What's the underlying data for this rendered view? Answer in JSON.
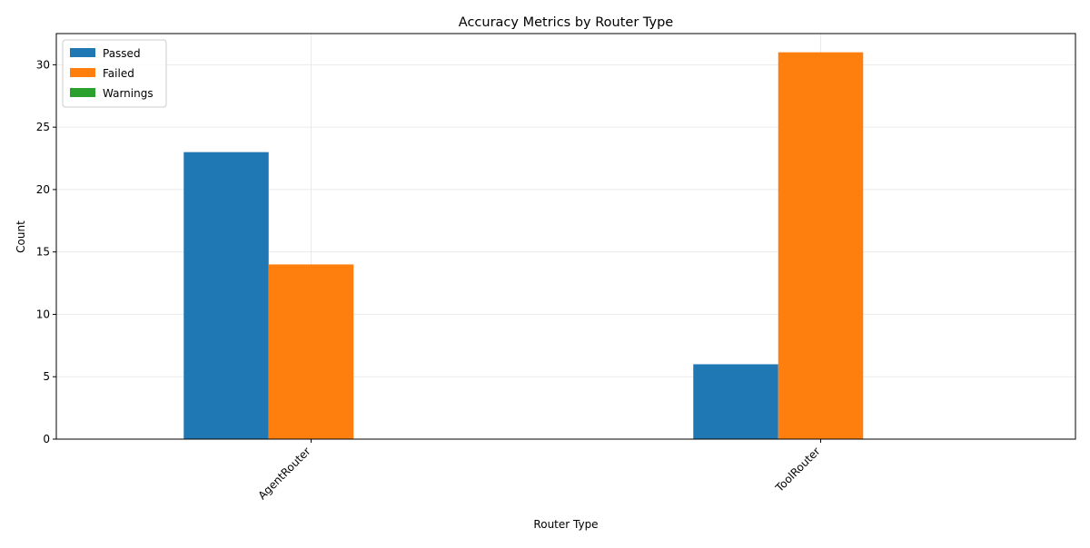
{
  "chart_data": {
    "type": "bar",
    "title": "Accuracy Metrics by Router Type",
    "xlabel": "Router Type",
    "ylabel": "Count",
    "categories": [
      "AgentRouter",
      "ToolRouter"
    ],
    "series": [
      {
        "name": "Passed",
        "values": [
          23,
          6
        ],
        "color": "#1f77b4"
      },
      {
        "name": "Failed",
        "values": [
          14,
          31
        ],
        "color": "#ff7f0e"
      },
      {
        "name": "Warnings",
        "values": [
          0,
          0
        ],
        "color": "#2ca02c"
      }
    ],
    "ylim": [
      0,
      32.5
    ],
    "yticks": [
      0,
      5,
      10,
      15,
      20,
      25,
      30
    ],
    "grid": true,
    "legend_position": "upper-left",
    "xtick_rotation": 45
  }
}
